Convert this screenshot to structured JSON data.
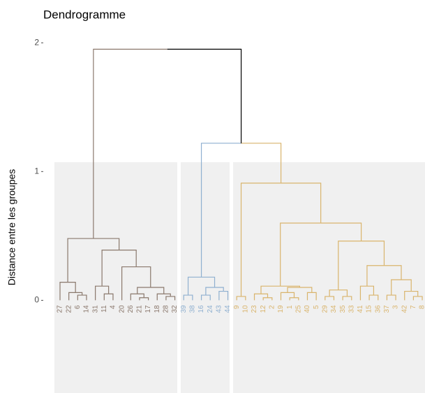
{
  "chart_data": {
    "type": "dendrogram",
    "title": "Dendrogramme",
    "y_label": "Distance entre les groupes",
    "ylim": [
      -0.72,
      2.05
    ],
    "yticks": [
      0,
      1,
      2
    ],
    "link_color": "#000000",
    "tree": {
      "height": 1.95,
      "children": [
        {
          "height": 0.48,
          "color": "#8a786c",
          "children": [
            {
              "height": 0.14,
              "children": [
                "27",
                {
                  "height": 0.06,
                  "children": [
                    "22",
                    {
                      "height": 0.04,
                      "children": [
                        "6",
                        "14"
                      ]
                    }
                  ]
                }
              ]
            },
            {
              "height": 0.39,
              "children": [
                {
                  "height": 0.11,
                  "children": [
                    "31",
                    {
                      "height": 0.05,
                      "children": [
                        "11",
                        "4"
                      ]
                    }
                  ]
                },
                {
                  "height": 0.26,
                  "children": [
                    "20",
                    {
                      "height": 0.1,
                      "children": [
                        {
                          "height": 0.05,
                          "children": [
                            "26",
                            {
                              "height": 0.02,
                              "children": [
                                "21",
                                "17"
                              ]
                            }
                          ]
                        },
                        {
                          "height": 0.05,
                          "children": [
                            "18",
                            {
                              "height": 0.03,
                              "children": [
                                "28",
                                "32"
                              ]
                            }
                          ]
                        }
                      ]
                    }
                  ]
                }
              ]
            }
          ]
        },
        {
          "height": 1.22,
          "children": [
            {
              "height": 0.18,
              "color": "#8fb0d0",
              "children": [
                {
                  "height": 0.04,
                  "children": [
                    "39",
                    "38"
                  ]
                },
                {
                  "height": 0.1,
                  "children": [
                    {
                      "height": 0.04,
                      "children": [
                        "16",
                        "24"
                      ]
                    },
                    {
                      "height": 0.07,
                      "children": [
                        "43",
                        "44"
                      ]
                    }
                  ]
                }
              ]
            },
            {
              "height": 0.91,
              "color": "#d9b46c",
              "children": [
                {
                  "height": 0.03,
                  "children": [
                    "9",
                    "10"
                  ]
                },
                {
                  "height": 0.6,
                  "children": [
                    {
                      "height": 0.11,
                      "children": [
                        {
                          "height": 0.05,
                          "children": [
                            "23",
                            {
                              "height": 0.02,
                              "children": [
                                "12",
                                "2"
                              ]
                            }
                          ]
                        },
                        {
                          "height": 0.1,
                          "children": [
                            {
                              "height": 0.06,
                              "children": [
                                "19",
                                {
                                  "height": 0.02,
                                  "children": [
                                    "1",
                                    "25"
                                  ]
                                }
                              ]
                            },
                            {
                              "height": 0.06,
                              "children": [
                                "40",
                                "5"
                              ]
                            }
                          ]
                        }
                      ]
                    },
                    {
                      "height": 0.46,
                      "children": [
                        {
                          "height": 0.08,
                          "children": [
                            {
                              "height": 0.03,
                              "children": [
                                "29",
                                "34"
                              ]
                            },
                            {
                              "height": 0.03,
                              "children": [
                                "35",
                                "33"
                              ]
                            }
                          ]
                        },
                        {
                          "height": 0.27,
                          "children": [
                            {
                              "height": 0.11,
                              "children": [
                                "41",
                                {
                                  "height": 0.04,
                                  "children": [
                                    "15",
                                    "36"
                                  ]
                                }
                              ]
                            },
                            {
                              "height": 0.16,
                              "children": [
                                {
                                  "height": 0.04,
                                  "children": [
                                    "37",
                                    "3"
                                  ]
                                },
                                {
                                  "height": 0.07,
                                  "children": [
                                    "42",
                                    {
                                      "height": 0.03,
                                      "children": [
                                        "7",
                                        "8"
                                      ]
                                    }
                                  ]
                                }
                              ]
                            }
                          ]
                        }
                      ]
                    }
                  ]
                }
              ]
            }
          ]
        }
      ]
    }
  }
}
